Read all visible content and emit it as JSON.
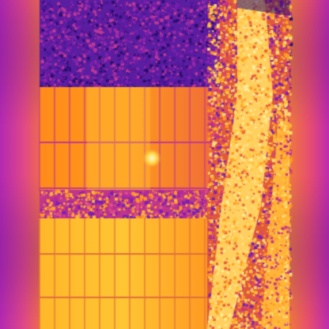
{
  "image": {
    "kind": "thermal-aerial-photo",
    "palette": [
      "#1c0a4a",
      "#3a148f",
      "#7a1fb4",
      "#c2338c",
      "#ee5e3a",
      "#ff9a12",
      "#ffcf2f",
      "#fff1a6"
    ],
    "regions": {
      "background_pillar": "#c02cb0",
      "vegetation": "#5a1ea0",
      "panel_cool": "#ff8a1a",
      "panel_warm": "#ffc433",
      "panel_gridline": "#c43a8a",
      "hotspot": "#fff6c0",
      "dirt_track": "#ffd060"
    }
  }
}
